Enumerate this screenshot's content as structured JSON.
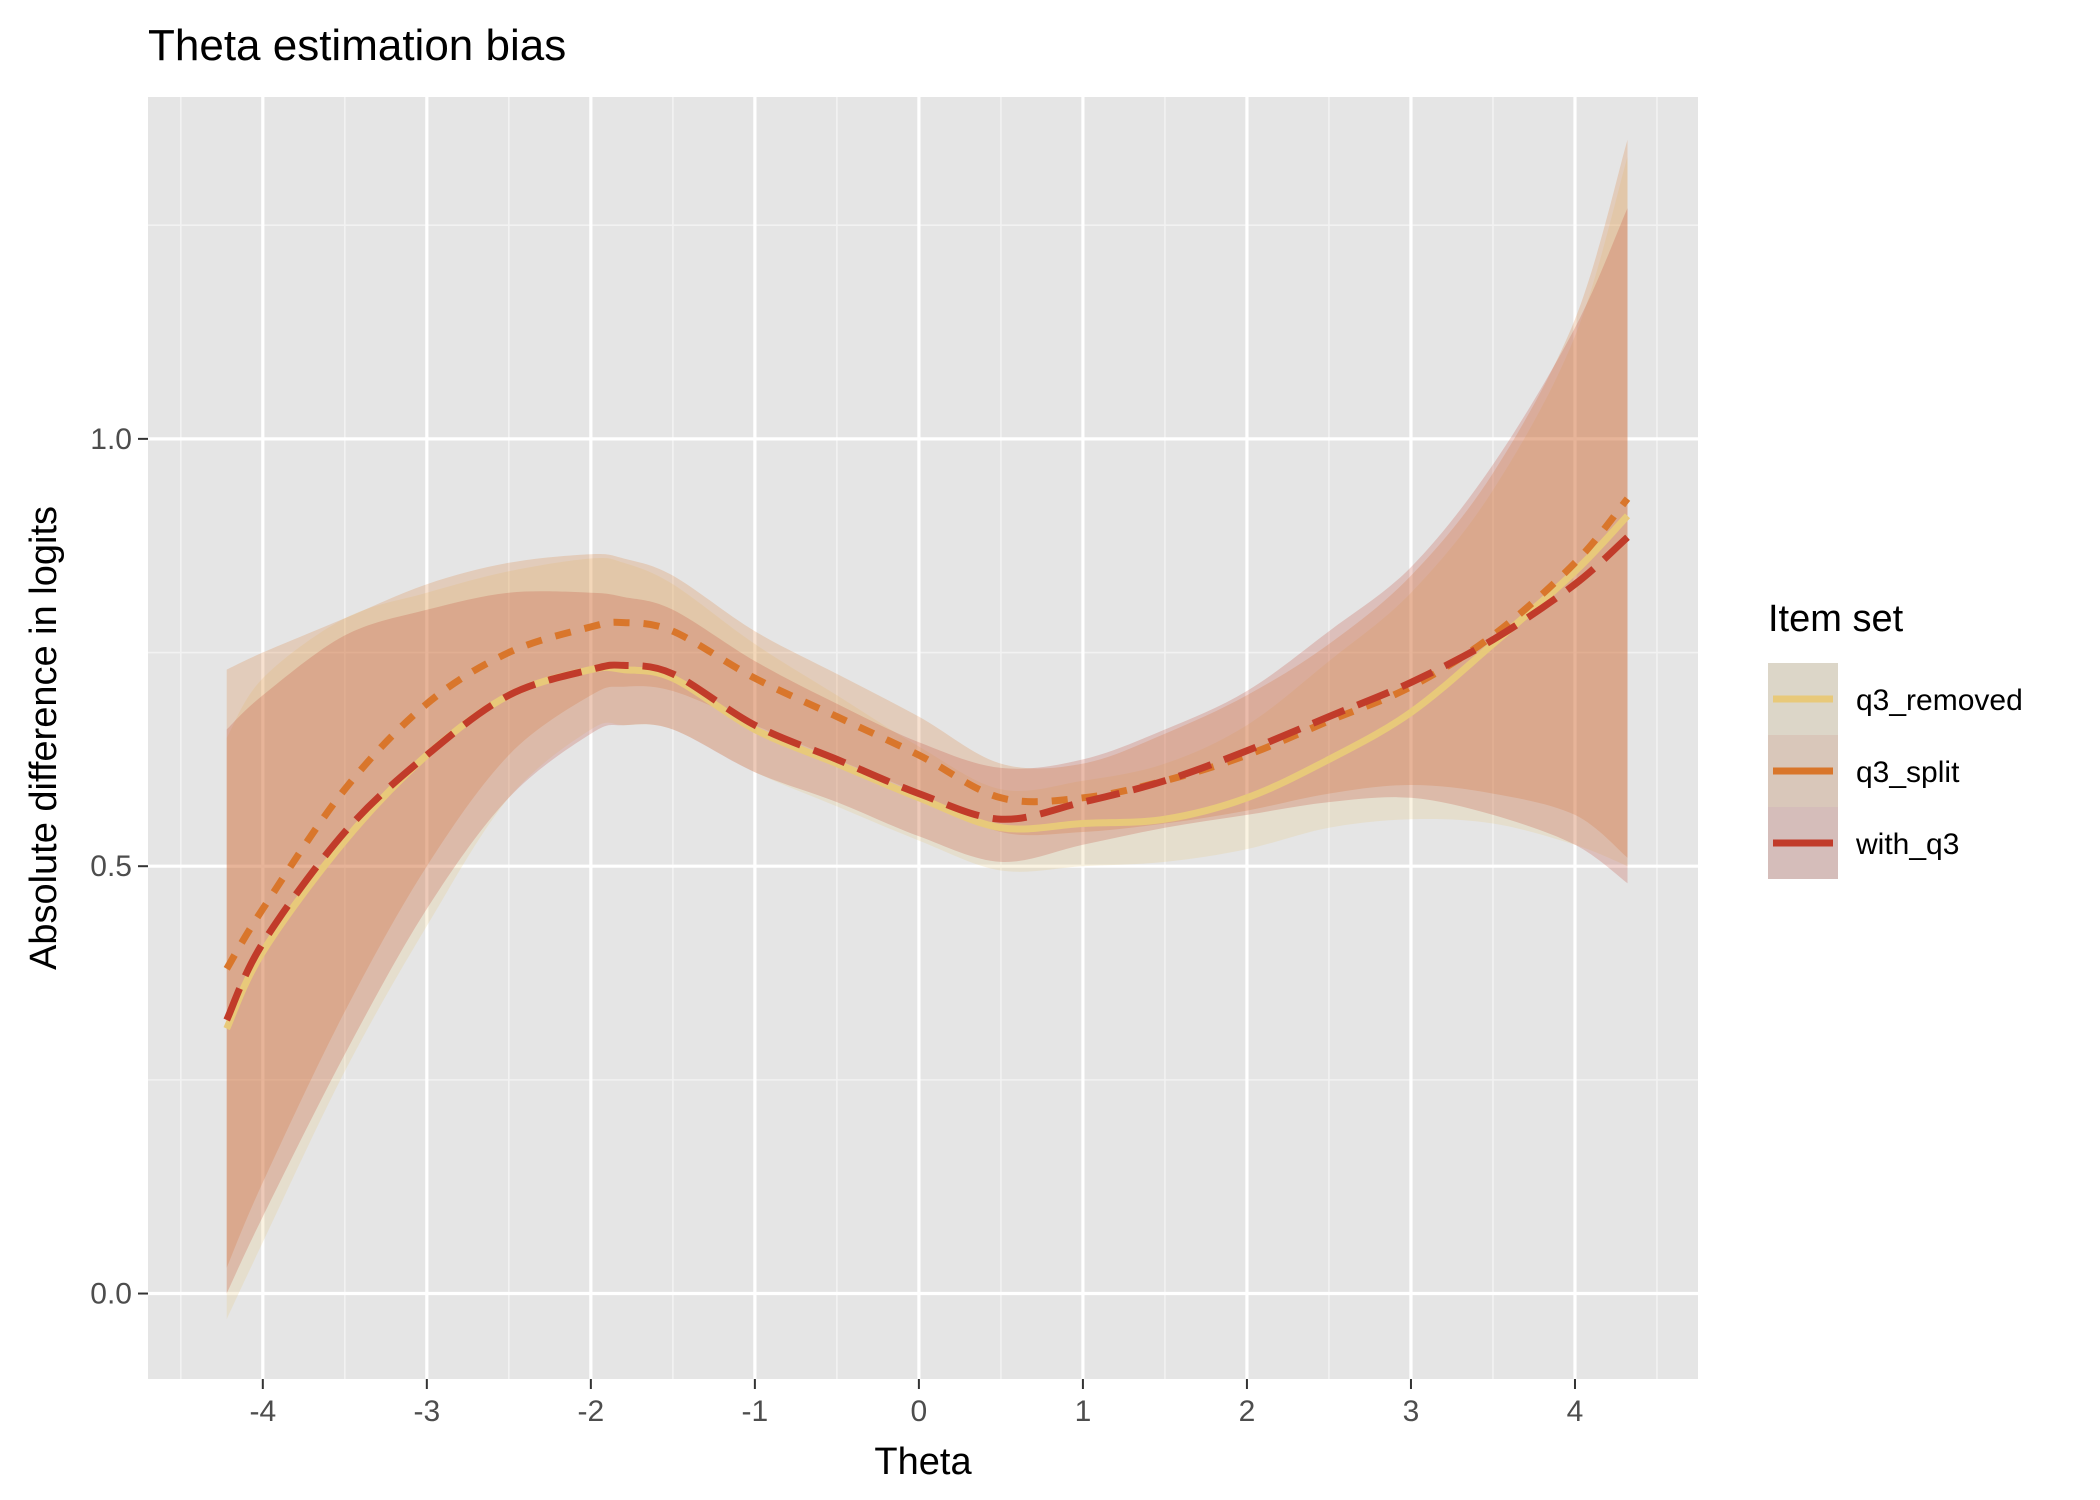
{
  "chart_data": {
    "type": "line",
    "title": "Theta estimation bias",
    "xlabel": "Theta",
    "ylabel": "Absolute difference in logits",
    "xlim": [
      -4.7,
      4.75
    ],
    "ylim": [
      -0.1,
      1.4
    ],
    "x_ticks": [
      -4,
      -3,
      -2,
      -1,
      0,
      1,
      2,
      3,
      4
    ],
    "x_tick_labels": [
      "-4",
      "-3",
      "-2",
      "-1",
      "0",
      "1",
      "2",
      "3",
      "4"
    ],
    "y_ticks": [
      0.0,
      0.5,
      1.0
    ],
    "y_tick_labels": [
      "0.0",
      "0.5",
      "1.0"
    ],
    "grid": true,
    "legend": {
      "title": "Item set",
      "position": "right"
    },
    "series": [
      {
        "name": "q3_removed",
        "color": "#E8C97A",
        "style": "solid",
        "x": [
          -4.22,
          -4.0,
          -3.5,
          -3.0,
          -2.5,
          -2.0,
          -1.8,
          -1.5,
          -1.0,
          -0.5,
          0.0,
          0.5,
          1.0,
          1.5,
          2.0,
          2.5,
          3.0,
          3.5,
          4.0,
          4.32
        ],
        "y": [
          0.31,
          0.4,
          0.53,
          0.63,
          0.7,
          0.73,
          0.73,
          0.72,
          0.66,
          0.62,
          0.58,
          0.545,
          0.55,
          0.555,
          0.58,
          0.625,
          0.68,
          0.76,
          0.845,
          0.91
        ],
        "band_low": [
          -0.03,
          0.06,
          0.26,
          0.43,
          0.58,
          0.66,
          0.665,
          0.66,
          0.61,
          0.57,
          0.53,
          0.495,
          0.5,
          0.505,
          0.52,
          0.545,
          0.555,
          0.55,
          0.525,
          0.5
        ],
        "band_high": [
          0.65,
          0.72,
          0.79,
          0.82,
          0.845,
          0.86,
          0.855,
          0.83,
          0.76,
          0.7,
          0.64,
          0.59,
          0.6,
          0.62,
          0.665,
          0.74,
          0.82,
          0.94,
          1.12,
          1.33
        ]
      },
      {
        "name": "q3_split",
        "color": "#D9762B",
        "style": "dashed",
        "x": [
          -4.22,
          -4.0,
          -3.5,
          -3.0,
          -2.5,
          -2.0,
          -1.8,
          -1.5,
          -1.0,
          -0.5,
          0.0,
          0.5,
          1.0,
          1.5,
          2.0,
          2.5,
          3.0,
          3.5,
          4.0,
          4.32
        ],
        "y": [
          0.38,
          0.45,
          0.59,
          0.69,
          0.75,
          0.78,
          0.785,
          0.775,
          0.72,
          0.675,
          0.63,
          0.58,
          0.58,
          0.6,
          0.63,
          0.67,
          0.71,
          0.77,
          0.855,
          0.93
        ],
        "band_low": [
          0.03,
          0.13,
          0.33,
          0.5,
          0.63,
          0.7,
          0.71,
          0.705,
          0.665,
          0.625,
          0.585,
          0.54,
          0.54,
          0.55,
          0.565,
          0.585,
          0.595,
          0.585,
          0.56,
          0.51
        ],
        "band_high": [
          0.73,
          0.75,
          0.79,
          0.83,
          0.855,
          0.865,
          0.86,
          0.84,
          0.775,
          0.725,
          0.675,
          0.62,
          0.62,
          0.655,
          0.7,
          0.76,
          0.84,
          0.96,
          1.14,
          1.35
        ]
      },
      {
        "name": "with_q3",
        "color": "#C13B2A",
        "style": "longdash",
        "x": [
          -4.22,
          -4.0,
          -3.5,
          -3.0,
          -2.5,
          -2.0,
          -1.8,
          -1.5,
          -1.0,
          -0.5,
          0.0,
          0.5,
          1.0,
          1.5,
          2.0,
          2.5,
          3.0,
          3.5,
          4.0,
          4.32
        ],
        "y": [
          0.32,
          0.41,
          0.54,
          0.63,
          0.7,
          0.73,
          0.735,
          0.725,
          0.665,
          0.625,
          0.585,
          0.555,
          0.575,
          0.6,
          0.635,
          0.675,
          0.715,
          0.765,
          0.83,
          0.885
        ],
        "band_low": [
          0.0,
          0.09,
          0.28,
          0.45,
          0.58,
          0.655,
          0.665,
          0.66,
          0.61,
          0.575,
          0.535,
          0.505,
          0.525,
          0.545,
          0.56,
          0.575,
          0.58,
          0.56,
          0.525,
          0.48
        ],
        "band_high": [
          0.66,
          0.7,
          0.77,
          0.8,
          0.82,
          0.82,
          0.815,
          0.8,
          0.74,
          0.69,
          0.645,
          0.615,
          0.625,
          0.66,
          0.705,
          0.775,
          0.85,
          0.97,
          1.13,
          1.27
        ]
      }
    ]
  }
}
